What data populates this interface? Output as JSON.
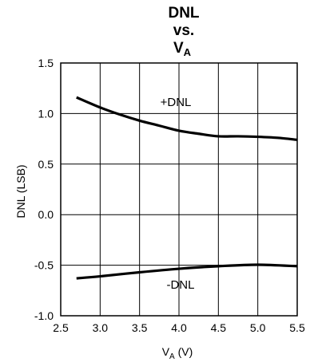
{
  "chart_data": {
    "type": "line",
    "title": {
      "line1": "DNL",
      "line2": "vs.",
      "line3_main": "V",
      "line3_sub": "A"
    },
    "xlabel": {
      "main": "V",
      "sub": "A",
      "rest": " (V)"
    },
    "ylabel": "DNL (LSB)",
    "xlim": [
      2.5,
      5.5
    ],
    "ylim": [
      -1.0,
      1.5
    ],
    "xticks": [
      2.5,
      3.0,
      3.5,
      4.0,
      4.5,
      5.0,
      5.5
    ],
    "xtick_labels": [
      "2.5",
      "3.0",
      "3.5",
      "4.0",
      "4.5",
      "5.0",
      "5.5"
    ],
    "yticks": [
      -1.0,
      -0.5,
      0.0,
      0.5,
      1.0,
      1.5
    ],
    "ytick_labels": [
      "-1.0",
      "-0.5",
      "0.0",
      "0.5",
      "1.0",
      "1.5"
    ],
    "grid": true,
    "series": [
      {
        "name": "+DNL",
        "x": [
          2.7,
          3.0,
          3.25,
          3.5,
          3.75,
          4.0,
          4.25,
          4.5,
          4.75,
          5.0,
          5.25,
          5.5
        ],
        "y": [
          1.16,
          1.06,
          0.99,
          0.93,
          0.88,
          0.83,
          0.8,
          0.775,
          0.775,
          0.77,
          0.76,
          0.74
        ]
      },
      {
        "name": "-DNL",
        "x": [
          2.7,
          3.0,
          3.5,
          4.0,
          4.5,
          5.0,
          5.5
        ],
        "y": [
          -0.63,
          -0.61,
          -0.57,
          -0.535,
          -0.51,
          -0.495,
          -0.51
        ]
      }
    ]
  }
}
